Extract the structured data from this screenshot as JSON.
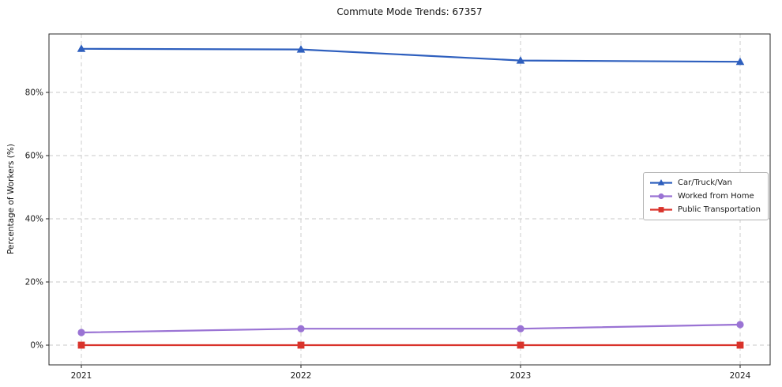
{
  "title": "Commute Mode Trends: 67357",
  "chart_data": {
    "type": "line",
    "title": "Commute Mode Trends: 67357",
    "xlabel": "",
    "ylabel": "Percentage of Workers (%)",
    "x": [
      2021,
      2022,
      2023,
      2024
    ],
    "x_tick_labels": [
      "2021",
      "2022",
      "2023",
      "2024"
    ],
    "y_ticks": [
      0,
      20,
      40,
      60,
      80
    ],
    "y_tick_labels": [
      "0%",
      "20%",
      "40%",
      "60%",
      "80%"
    ],
    "ylim": [
      -6.25,
      98.5
    ],
    "grid": "dashed-both",
    "legend_position": "center-right",
    "series": [
      {
        "name": "Car/Truck/Van",
        "color": "#2e5fbe",
        "marker": "triangle",
        "values": [
          93.8,
          93.6,
          90.1,
          89.7
        ]
      },
      {
        "name": "Worked from Home",
        "color": "#9a73d4",
        "marker": "circle",
        "values": [
          4.0,
          5.2,
          5.2,
          6.5
        ]
      },
      {
        "name": "Public Transportation",
        "color": "#d9332b",
        "marker": "square",
        "values": [
          0.0,
          0.0,
          0.0,
          0.0
        ]
      }
    ]
  }
}
